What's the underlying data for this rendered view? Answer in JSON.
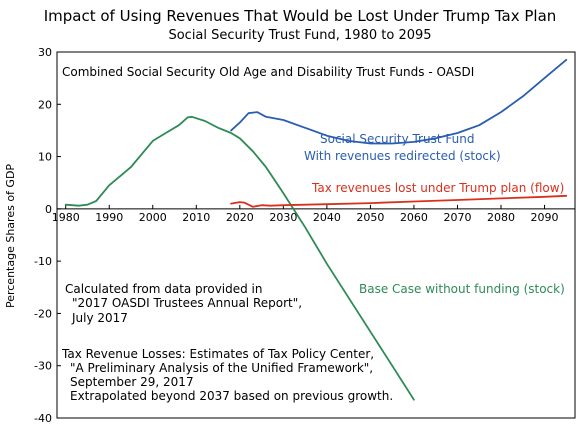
{
  "chart_data": {
    "type": "line",
    "title": "Impact of Using Revenues That Would be Lost Under Trump Tax Plan",
    "subtitle": "Social Security Trust Fund, 1980 to 2095",
    "xlabel": "",
    "ylabel": "Percentage Shares of GDP",
    "xlim": [
      1978,
      2097
    ],
    "ylim": [
      -40,
      30
    ],
    "x_ticks": [
      1980,
      1990,
      2000,
      2010,
      2020,
      2030,
      2040,
      2050,
      2060,
      2070,
      2080,
      2090
    ],
    "y_ticks": [
      30,
      20,
      10,
      0,
      -10,
      -20,
      -30,
      -40
    ],
    "grid": false,
    "colors": {
      "base_case": "#2e8b57",
      "redirected": "#2a5db0",
      "tax_loss": "#d9301e"
    },
    "series": [
      {
        "name": "Base Case without funding (stock)",
        "key": "base_case",
        "x": [
          1980,
          1983,
          1985,
          1987,
          1990,
          1995,
          2000,
          2003,
          2006,
          2008,
          2009,
          2012,
          2015,
          2018,
          2020,
          2023,
          2026,
          2030,
          2035,
          2040,
          2045,
          2050,
          2055,
          2060
        ],
        "y": [
          0.8,
          0.6,
          0.8,
          1.5,
          4.5,
          8.0,
          13.0,
          14.5,
          16.0,
          17.5,
          17.6,
          16.8,
          15.5,
          14.5,
          13.5,
          11.0,
          8.0,
          3.0,
          -3.5,
          -10.5,
          -17.0,
          -23.5,
          -30.0,
          -36.5
        ]
      },
      {
        "name": "Social Security Trust Fund With revenues redirected (stock)",
        "key": "redirected",
        "x": [
          2018,
          2020,
          2022,
          2024,
          2026,
          2030,
          2035,
          2040,
          2045,
          2050,
          2055,
          2060,
          2065,
          2070,
          2075,
          2080,
          2085,
          2090,
          2095
        ],
        "y": [
          15.0,
          16.5,
          18.3,
          18.5,
          17.6,
          17.0,
          15.5,
          14.0,
          13.0,
          12.5,
          12.5,
          12.8,
          13.5,
          14.5,
          16.0,
          18.5,
          21.5,
          25.0,
          28.5
        ]
      },
      {
        "name": "Tax revenues lost under Trump plan (flow)",
        "key": "tax_loss",
        "x": [
          2018,
          2020,
          2021,
          2023,
          2025,
          2027,
          2030,
          2040,
          2050,
          2060,
          2070,
          2080,
          2090,
          2095
        ],
        "y": [
          1.0,
          1.3,
          1.2,
          0.4,
          0.7,
          0.6,
          0.7,
          0.9,
          1.1,
          1.4,
          1.7,
          2.0,
          2.3,
          2.5
        ]
      }
    ],
    "annotations": [
      "Combined Social Security Old Age and Disability Trust Funds - OASDI",
      "Social Security Trust Fund",
      "With revenues redirected (stock)",
      "Tax revenues lost under Trump plan (flow)",
      "Base Case without funding (stock)",
      "Calculated from data provided in",
      "\"2017 OASDI Trustees Annual Report\",",
      "July 2017",
      "Tax Revenue Losses:  Estimates of Tax Policy Center,",
      "\"A Preliminary Analysis of the Unified Framework\",",
      "September 29, 2017",
      "Extrapolated beyond 2037 based on previous growth."
    ]
  }
}
